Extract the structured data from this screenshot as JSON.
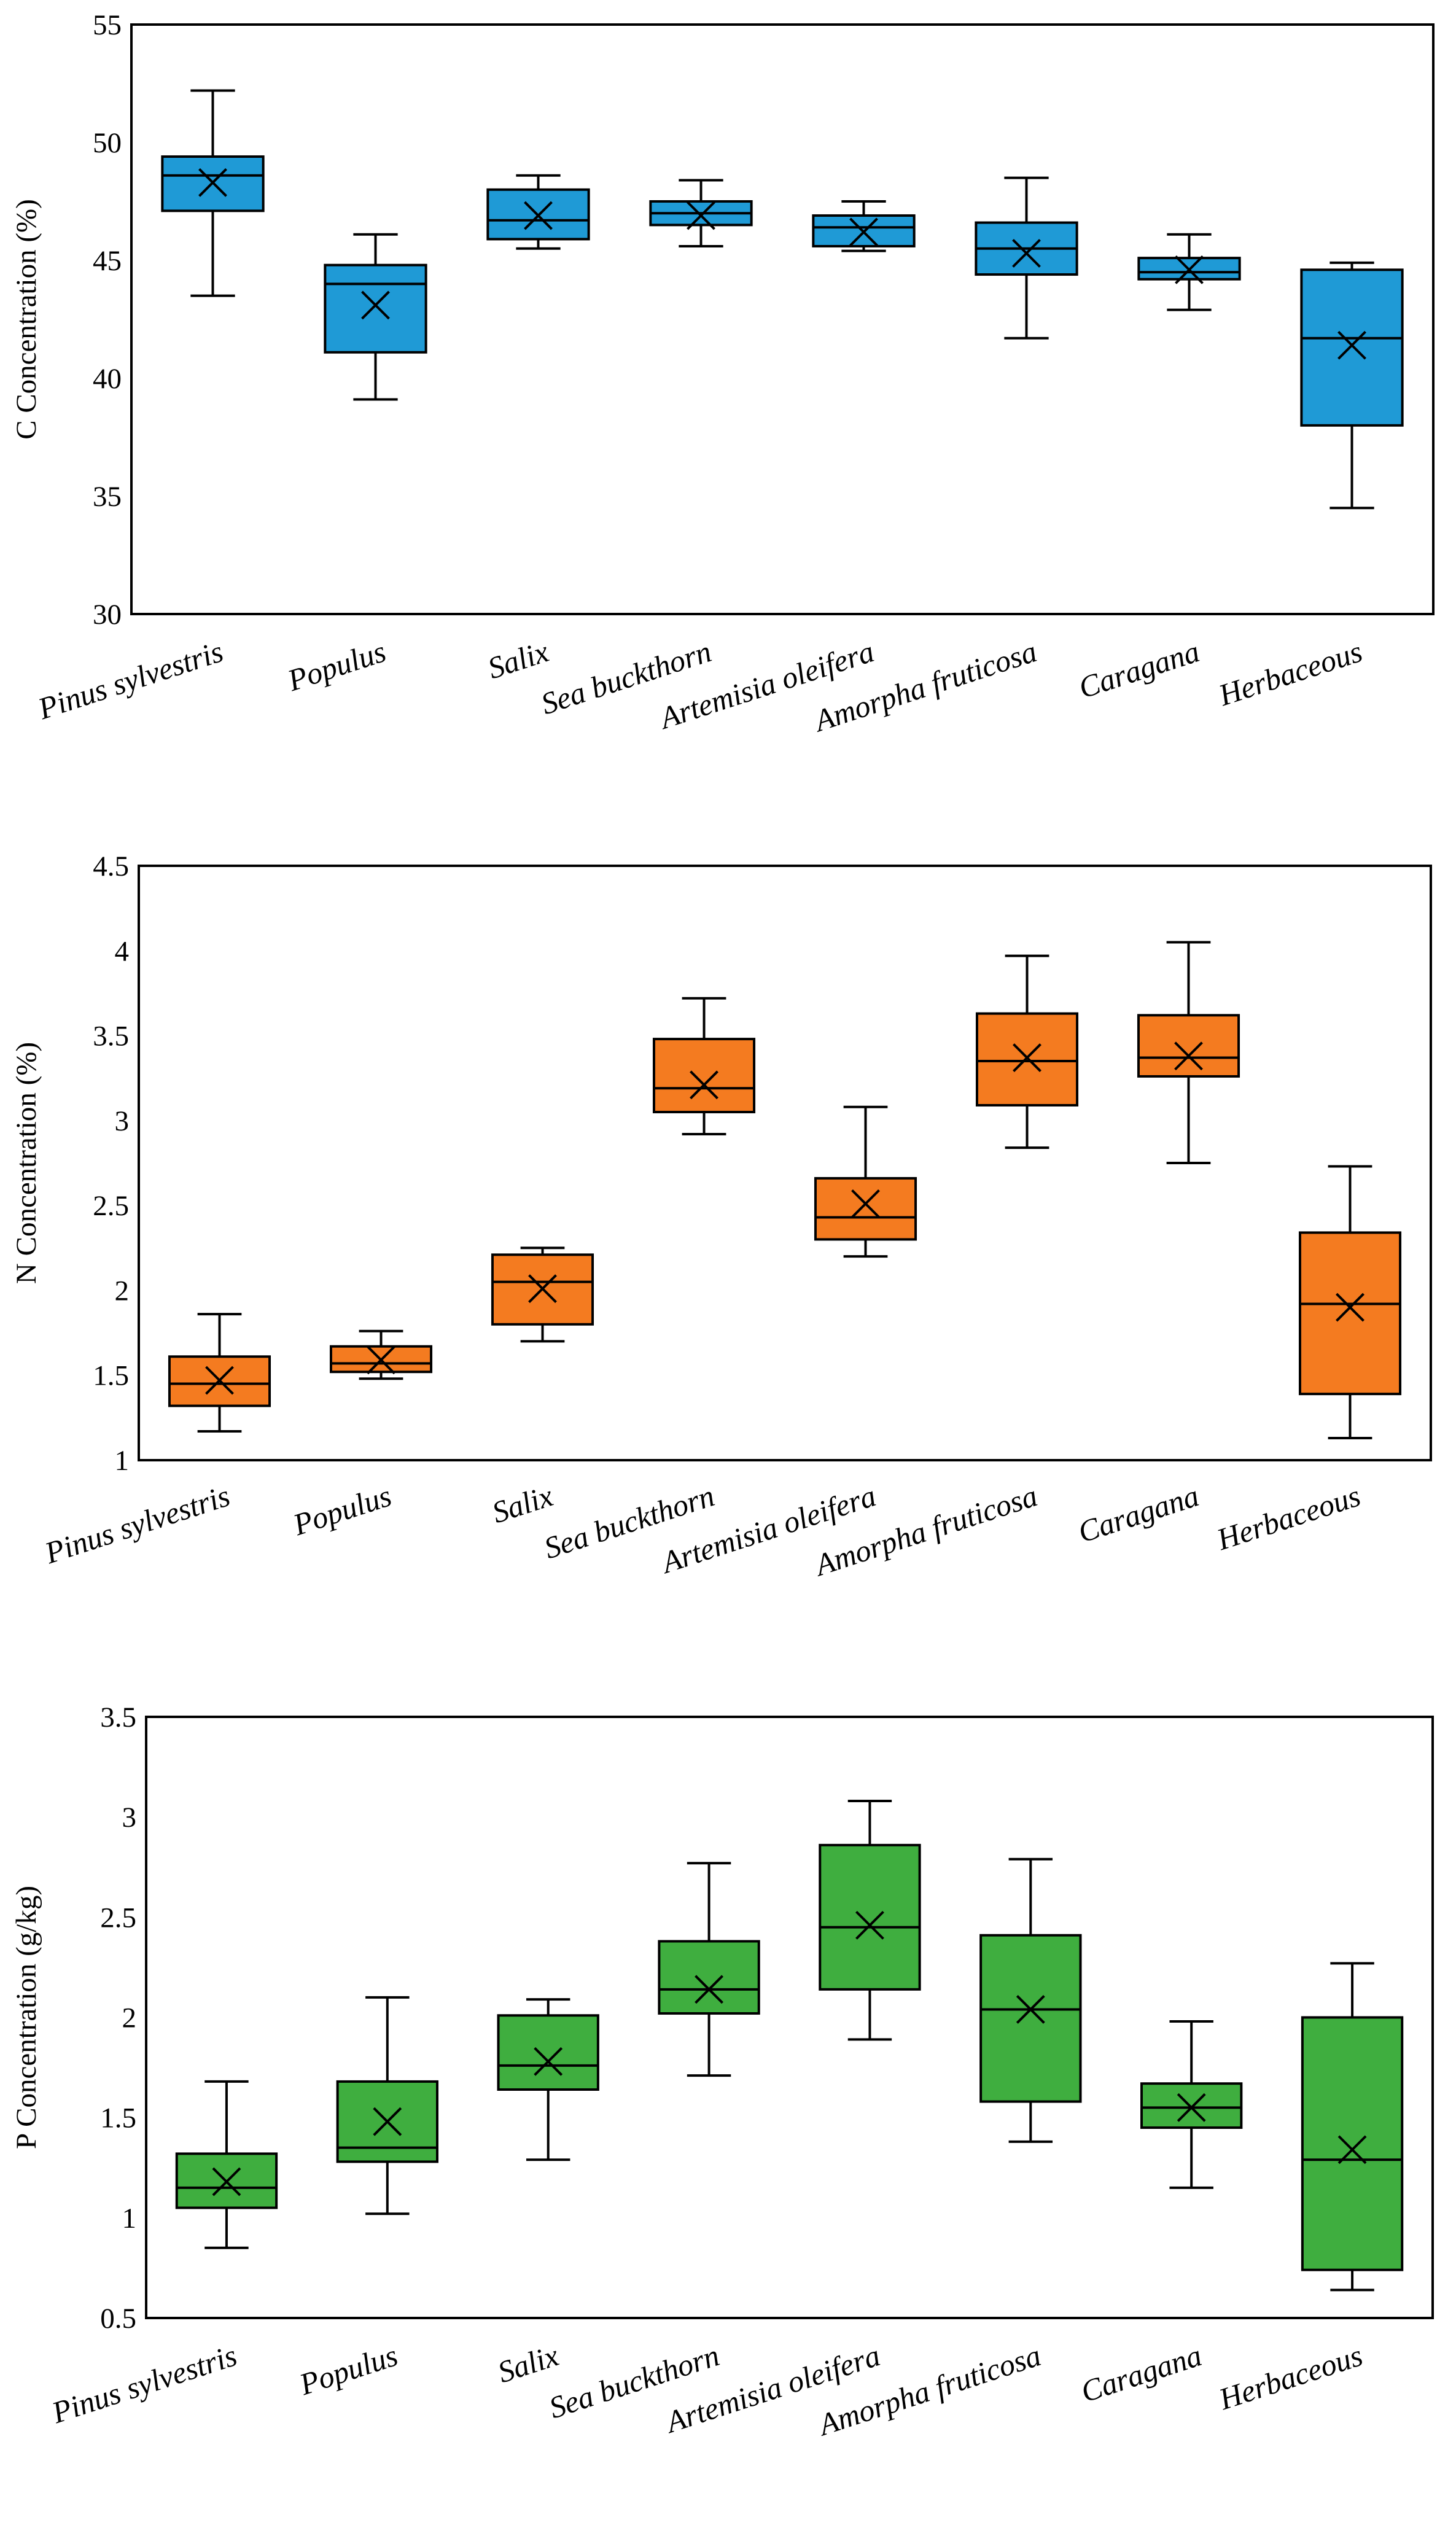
{
  "chart_data": [
    {
      "type": "box",
      "ylabel": "C Concentration (%)",
      "ylim": [
        30,
        55
      ],
      "yticks": [
        30,
        35,
        40,
        45,
        50,
        55
      ],
      "ytick_labels": [
        "30",
        "35",
        "40",
        "45",
        "50",
        "55"
      ],
      "color": "#1f9ad6",
      "categories": [
        "Pinus sylvestris",
        "Populus",
        "Salix",
        "Sea buckthorn",
        "Artemisia  oleifera",
        "Amorpha fruticosa",
        "Caragana",
        "Herbaceous"
      ],
      "boxes": [
        {
          "min": 43.5,
          "q1": 47.1,
          "median": 48.6,
          "q3": 49.4,
          "max": 52.2,
          "mean": 48.3
        },
        {
          "min": 39.1,
          "q1": 41.1,
          "median": 44.0,
          "q3": 44.8,
          "max": 46.1,
          "mean": 43.1
        },
        {
          "min": 45.5,
          "q1": 45.9,
          "median": 46.7,
          "q3": 48.0,
          "max": 48.6,
          "mean": 46.9
        },
        {
          "min": 45.6,
          "q1": 46.5,
          "median": 47.0,
          "q3": 47.5,
          "max": 48.4,
          "mean": 46.9
        },
        {
          "min": 45.4,
          "q1": 45.6,
          "median": 46.4,
          "q3": 46.9,
          "max": 47.5,
          "mean": 46.2
        },
        {
          "min": 41.7,
          "q1": 44.4,
          "median": 45.5,
          "q3": 46.6,
          "max": 48.5,
          "mean": 45.3
        },
        {
          "min": 42.9,
          "q1": 44.2,
          "median": 44.5,
          "q3": 45.1,
          "max": 46.1,
          "mean": 44.6
        },
        {
          "min": 34.5,
          "q1": 38.0,
          "median": 41.7,
          "q3": 44.6,
          "max": 44.9,
          "mean": 41.4
        }
      ]
    },
    {
      "type": "box",
      "ylabel": "N Concentration (%)",
      "ylim": [
        1,
        4.5
      ],
      "yticks": [
        1,
        1.5,
        2,
        2.5,
        3,
        3.5,
        4,
        4.5
      ],
      "ytick_labels": [
        "1",
        "1.5",
        "2",
        "2.5",
        "3",
        "3.5",
        "4",
        "4.5"
      ],
      "color": "#f47b20",
      "categories": [
        "Pinus sylvestris",
        "Populus",
        "Salix",
        "Sea buckthorn",
        "Artemisia  oleifera",
        "Amorpha fruticosa",
        "Caragana",
        "Herbaceous"
      ],
      "boxes": [
        {
          "min": 1.17,
          "q1": 1.32,
          "median": 1.45,
          "q3": 1.61,
          "max": 1.86,
          "mean": 1.47
        },
        {
          "min": 1.48,
          "q1": 1.52,
          "median": 1.57,
          "q3": 1.67,
          "max": 1.76,
          "mean": 1.59
        },
        {
          "min": 1.7,
          "q1": 1.8,
          "median": 2.05,
          "q3": 2.21,
          "max": 2.25,
          "mean": 2.01
        },
        {
          "min": 2.92,
          "q1": 3.05,
          "median": 3.19,
          "q3": 3.48,
          "max": 3.72,
          "mean": 3.21
        },
        {
          "min": 2.2,
          "q1": 2.3,
          "median": 2.43,
          "q3": 2.66,
          "max": 3.08,
          "mean": 2.51
        },
        {
          "min": 2.84,
          "q1": 3.09,
          "median": 3.35,
          "q3": 3.63,
          "max": 3.97,
          "mean": 3.37
        },
        {
          "min": 2.75,
          "q1": 3.26,
          "median": 3.37,
          "q3": 3.62,
          "max": 4.05,
          "mean": 3.38
        },
        {
          "min": 1.13,
          "q1": 1.39,
          "median": 1.92,
          "q3": 2.34,
          "max": 2.73,
          "mean": 1.9
        }
      ]
    },
    {
      "type": "box",
      "ylabel": "P Concentration (g/kg)",
      "ylim": [
        0.5,
        3.5
      ],
      "yticks": [
        0.5,
        1,
        1.5,
        2,
        2.5,
        3,
        3.5
      ],
      "ytick_labels": [
        "0.5",
        "1",
        "1.5",
        "2",
        "2.5",
        "3",
        "3.5"
      ],
      "color": "#3fae3f",
      "categories": [
        "Pinus sylvestris",
        "Populus",
        "Salix",
        "Sea buckthorn",
        "Artemisia  oleifera",
        "Amorpha fruticosa",
        "Caragana",
        "Herbaceous"
      ],
      "boxes": [
        {
          "min": 0.85,
          "q1": 1.05,
          "median": 1.15,
          "q3": 1.32,
          "max": 1.68,
          "mean": 1.18
        },
        {
          "min": 1.02,
          "q1": 1.28,
          "median": 1.35,
          "q3": 1.68,
          "max": 2.1,
          "mean": 1.48
        },
        {
          "min": 1.29,
          "q1": 1.64,
          "median": 1.76,
          "q3": 2.01,
          "max": 2.09,
          "mean": 1.78
        },
        {
          "min": 1.71,
          "q1": 2.02,
          "median": 2.14,
          "q3": 2.38,
          "max": 2.77,
          "mean": 2.14
        },
        {
          "min": 1.89,
          "q1": 2.14,
          "median": 2.45,
          "q3": 2.86,
          "max": 3.08,
          "mean": 2.46
        },
        {
          "min": 1.38,
          "q1": 1.58,
          "median": 2.04,
          "q3": 2.41,
          "max": 2.79,
          "mean": 2.04
        },
        {
          "min": 1.15,
          "q1": 1.45,
          "median": 1.55,
          "q3": 1.67,
          "max": 1.98,
          "mean": 1.55
        },
        {
          "min": 0.64,
          "q1": 0.74,
          "median": 1.29,
          "q3": 2.0,
          "max": 2.27,
          "mean": 1.34
        }
      ]
    }
  ]
}
